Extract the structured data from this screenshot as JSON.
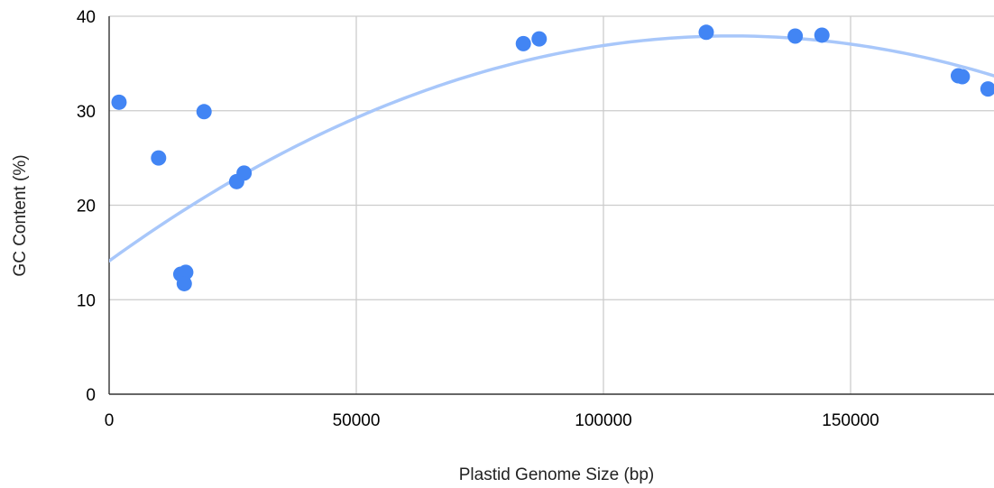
{
  "chart_data": {
    "type": "scatter",
    "title": "",
    "xlabel": "Plastid Genome Size (bp)",
    "ylabel": "GC Content (%)",
    "xlim": [
      0,
      178000
    ],
    "ylim": [
      0,
      40
    ],
    "x_ticks": [
      0,
      50000,
      100000,
      150000
    ],
    "y_ticks": [
      0,
      10,
      20,
      30,
      40
    ],
    "x_tick_labels": [
      "0",
      "50000",
      "100000",
      "150000"
    ],
    "y_tick_labels": [
      "0",
      "10",
      "20",
      "30",
      "40"
    ],
    "grid": true,
    "legend": "none",
    "series": [
      {
        "points": [
          {
            "x": 2000,
            "y": 30.9
          },
          {
            "x": 10000,
            "y": 25.0
          },
          {
            "x": 19200,
            "y": 29.9
          },
          {
            "x": 14500,
            "y": 12.7
          },
          {
            "x": 15500,
            "y": 12.9
          },
          {
            "x": 15200,
            "y": 11.7
          },
          {
            "x": 25800,
            "y": 22.5
          },
          {
            "x": 27300,
            "y": 23.4
          },
          {
            "x": 83800,
            "y": 37.1
          },
          {
            "x": 87000,
            "y": 37.6
          },
          {
            "x": 120800,
            "y": 38.3
          },
          {
            "x": 138800,
            "y": 37.9
          },
          {
            "x": 144200,
            "y": 38.0
          },
          {
            "x": 171800,
            "y": 33.7
          },
          {
            "x": 172600,
            "y": 33.6
          },
          {
            "x": 177800,
            "y": 32.3
          }
        ],
        "color": "#4285f4"
      }
    ],
    "trendline": {
      "type": "polynomial",
      "degree": 2,
      "coefficients": [
        14.1,
        0.000378,
        -1.5e-09
      ],
      "color": "#a8c7fa"
    }
  }
}
